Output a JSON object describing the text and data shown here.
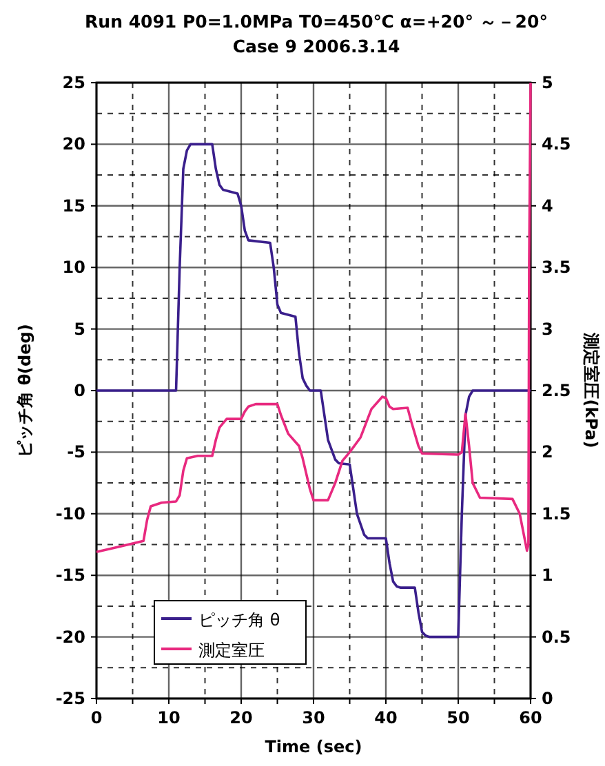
{
  "chart_data": {
    "type": "line",
    "title": "Run  4091   P0=1.0MPa T0=450℃  α=+20°  ～－20°",
    "subtitle": "Case 9     2006.3.14",
    "xlabel": "Time (sec)",
    "ylabel": "ピッチ角 θ(deg)",
    "y2label": "測定室圧(kPa)",
    "xlim": [
      0,
      60
    ],
    "xticks": [
      0,
      {
        "value": 5,
        "label": null
      },
      10,
      {
        "value": 15,
        "label": null
      },
      20,
      {
        "value": 25,
        "label": null
      },
      30,
      {
        "value": 35,
        "label": null
      },
      40,
      {
        "value": 45,
        "label": null
      },
      50,
      {
        "value": 55,
        "label": null
      },
      60
    ],
    "ylim": [
      -25,
      25
    ],
    "yticks": [
      -25,
      {
        "value": -22.5,
        "label": null
      },
      -20,
      {
        "value": -17.5,
        "label": null
      },
      -15,
      {
        "value": -12.5,
        "label": null
      },
      -10,
      {
        "value": -7.5,
        "label": null
      },
      -5,
      {
        "value": -2.5,
        "label": null
      },
      0,
      {
        "value": 2.5,
        "label": null
      },
      5,
      {
        "value": 7.5,
        "label": null
      },
      10,
      {
        "value": 12.5,
        "label": null
      },
      15,
      {
        "value": 17.5,
        "label": null
      },
      20,
      {
        "value": 22.5,
        "label": null
      },
      25
    ],
    "y2lim": [
      0,
      5
    ],
    "y2ticks": [
      0,
      0.5,
      1,
      1.5,
      2,
      2.5,
      3,
      3.5,
      4,
      4.5,
      5
    ],
    "grid": true,
    "legend": "bottom left",
    "marker": "none",
    "series": [
      {
        "name": "ピッチ角 θ",
        "color": "#3a1f8c",
        "x": [
          0,
          11,
          11.5,
          12,
          12.5,
          13,
          16,
          16.5,
          17,
          17.5,
          19.5,
          20,
          20.5,
          21,
          24,
          24.5,
          25,
          25.5,
          27.5,
          28,
          28.5,
          29,
          29.5,
          31,
          31.5,
          32,
          33,
          33.5,
          35,
          35.5,
          36,
          37,
          37.5,
          40,
          40.5,
          41,
          41.5,
          42,
          44,
          44.5,
          45,
          45.5,
          46,
          50,
          50.5,
          51,
          51.5,
          52,
          60
        ],
        "values": [
          0,
          0,
          10,
          18,
          19.5,
          20,
          20,
          18,
          16.7,
          16.3,
          16,
          15,
          13,
          12.2,
          12,
          10,
          7,
          6.3,
          6,
          3,
          1,
          0.4,
          0,
          0,
          -2,
          -4,
          -5.6,
          -5.9,
          -6,
          -8,
          -10,
          -11.7,
          -12,
          -12,
          -14,
          -15.5,
          -15.9,
          -16,
          -16,
          -18,
          -19.6,
          -19.9,
          -20,
          -20,
          -10,
          -2,
          -0.5,
          0,
          0
        ]
      },
      {
        "name": "測定室圧",
        "color": "#e8297f",
        "axis": "y2",
        "x": [
          0,
          3,
          6.5,
          7,
          7.5,
          9,
          11,
          11.5,
          12,
          12.5,
          14,
          16,
          16.5,
          17,
          18,
          20,
          20.5,
          21,
          22,
          25,
          25.5,
          26.5,
          28,
          28.5,
          29.5,
          30,
          32,
          33,
          34,
          35,
          36.5,
          38,
          39.5,
          40,
          40.5,
          41,
          43,
          43.5,
          44.5,
          45,
          50,
          50.5,
          51,
          51.5,
          52,
          53,
          57.5,
          58.5,
          59.5,
          59.7,
          59.8,
          60
        ],
        "values": [
          1.19,
          1.23,
          1.28,
          1.45,
          1.56,
          1.59,
          1.6,
          1.65,
          1.85,
          1.95,
          1.97,
          1.97,
          2.1,
          2.2,
          2.27,
          2.27,
          2.33,
          2.37,
          2.39,
          2.39,
          2.3,
          2.15,
          2.05,
          1.95,
          1.7,
          1.61,
          1.61,
          1.75,
          1.93,
          2.0,
          2.12,
          2.35,
          2.45,
          2.44,
          2.37,
          2.35,
          2.36,
          2.25,
          2.05,
          1.99,
          1.98,
          2.0,
          2.31,
          2.05,
          1.75,
          1.63,
          1.62,
          1.5,
          1.2,
          1.25,
          3.5,
          5
        ]
      }
    ]
  }
}
